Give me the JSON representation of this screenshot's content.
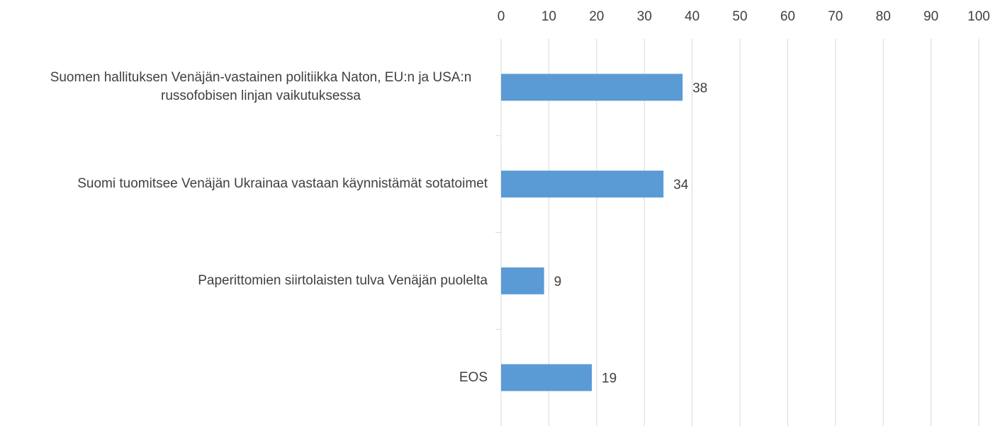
{
  "chart_data": {
    "type": "bar",
    "orientation": "horizontal",
    "categories": [
      "Suomen hallituksen Venäjän-vastainen politiikka Naton, EU:n ja USA:n russofobisen linjan vaikutuksessa",
      "Suomi tuomitsee Venäjän Ukrainaa vastaan käynnistämät sotatoimet",
      "Paperittomien siirtolaisten tulva Venäjän puolelta",
      "EOS"
    ],
    "values": [
      38,
      34,
      9,
      19
    ],
    "color": "#5b9bd5",
    "xlim": [
      0,
      100
    ],
    "xticks": [
      0,
      10,
      20,
      30,
      40,
      50,
      60,
      70,
      80,
      90,
      100
    ],
    "grid": true
  }
}
